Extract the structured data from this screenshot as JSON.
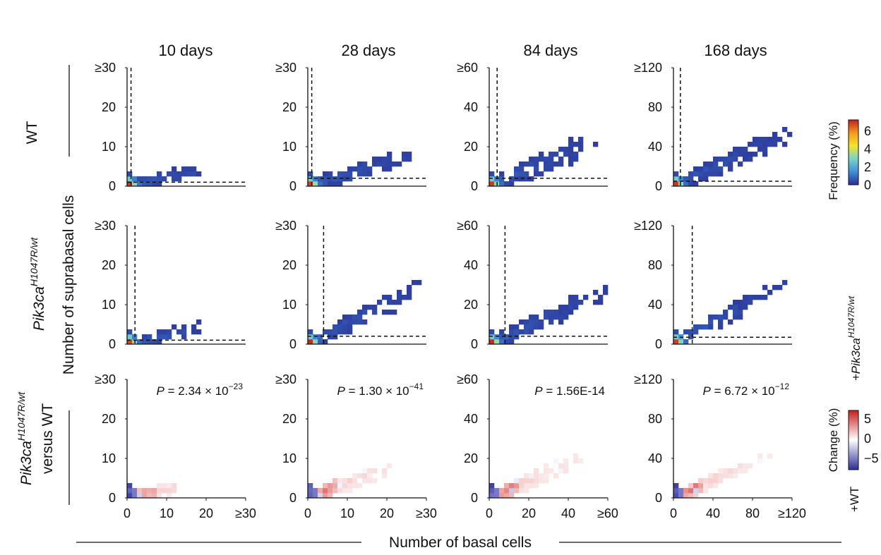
{
  "figure": {
    "x_axis_title": "Number of basal cells",
    "y_axis_title": "Number of suprabasal cells",
    "row_labels": [
      {
        "base": "WT",
        "sup": "",
        "suffix": "",
        "color": "#9a8b1e"
      },
      {
        "base": "Pik3ca",
        "sup": "H1047R/wt",
        "suffix": "",
        "color": "#1f8a4a"
      },
      {
        "base": "Pik3ca",
        "sup": "H1047R/wt",
        "suffix": "versus WT",
        "color": "#111111"
      }
    ],
    "colorbars": {
      "frequency": {
        "title": "Frequency (%)",
        "ticks": [
          "6",
          "4",
          "2",
          "0"
        ],
        "colors": [
          "#2b2f96",
          "#3f8fd8",
          "#78d4c8",
          "#f2e62a",
          "#f39a1c",
          "#c81e1e"
        ]
      },
      "change": {
        "title": "Change (%)",
        "ticks": [
          "5",
          "0",
          "−5"
        ],
        "label_top_base": "+Pik3ca",
        "label_top_sup": "H1047R/wt",
        "label_bottom": "+WT",
        "colors": [
          "#2b2f96",
          "#ffffff",
          "#c81e1e"
        ]
      }
    }
  },
  "chart_data": [
    {
      "type": "heatmap",
      "panel": "WT, 10 days",
      "title": "10 days",
      "xticks": [
        "0",
        "10",
        "20",
        "≥30"
      ],
      "yticks": [
        "0",
        "10",
        "20",
        "≥30"
      ],
      "xlim": [
        0,
        30
      ],
      "ylim": [
        0,
        30
      ],
      "threshold": {
        "x": 1,
        "y": 1
      },
      "trend": [
        0.6,
        0.22,
        0.04
      ]
    },
    {
      "type": "heatmap",
      "panel": "WT, 28 days",
      "title": "28 days",
      "xticks": [
        "0",
        "10",
        "20",
        "≥30"
      ],
      "yticks": [
        "0",
        "10",
        "20",
        "≥30"
      ],
      "xlim": [
        0,
        30
      ],
      "ylim": [
        0,
        30
      ],
      "threshold": {
        "x": 1,
        "y": 2
      },
      "trend": [
        0.85,
        0.3,
        0.07
      ]
    },
    {
      "type": "heatmap",
      "panel": "WT, 84 days",
      "title": "84 days",
      "xticks": [
        "0",
        "20",
        "40",
        "≥60"
      ],
      "yticks": [
        "0",
        "20",
        "40",
        "≥60"
      ],
      "xlim": [
        0,
        60
      ],
      "ylim": [
        0,
        60
      ],
      "threshold": {
        "x": 4,
        "y": 4
      },
      "trend": [
        0.9,
        0.42,
        0.1
      ]
    },
    {
      "type": "heatmap",
      "panel": "WT, 168 days",
      "title": "168 days",
      "xticks": [
        "0",
        "40",
        "80",
        "≥120"
      ],
      "yticks": [
        "0",
        "40",
        "80",
        "≥120"
      ],
      "xlim": [
        0,
        120
      ],
      "ylim": [
        0,
        120
      ],
      "threshold": {
        "x": 7,
        "y": 5
      },
      "trend": [
        1.0,
        0.45,
        0.08
      ]
    },
    {
      "type": "heatmap",
      "panel": "Pik3ca H1047R/wt, 10 days",
      "xticks": [
        "0",
        "10",
        "20",
        "≥30"
      ],
      "yticks": [
        "0",
        "10",
        "20",
        "≥30"
      ],
      "xlim": [
        0,
        30
      ],
      "ylim": [
        0,
        30
      ],
      "threshold": {
        "x": 2,
        "y": 1
      },
      "trend": [
        0.62,
        0.22,
        0.05
      ]
    },
    {
      "type": "heatmap",
      "panel": "Pik3ca H1047R/wt, 28 days",
      "xticks": [
        "0",
        "10",
        "20",
        "≥30"
      ],
      "yticks": [
        "0",
        "10",
        "20",
        "≥30"
      ],
      "xlim": [
        0,
        30
      ],
      "ylim": [
        0,
        30
      ],
      "threshold": {
        "x": 4,
        "y": 2
      },
      "trend": [
        0.95,
        0.5,
        0.08
      ]
    },
    {
      "type": "heatmap",
      "panel": "Pik3ca H1047R/wt, 84 days",
      "xticks": [
        "0",
        "20",
        "40",
        "≥60"
      ],
      "yticks": [
        "0",
        "20",
        "40",
        "≥60"
      ],
      "xlim": [
        0,
        60
      ],
      "ylim": [
        0,
        60
      ],
      "threshold": {
        "x": 8,
        "y": 4
      },
      "trend": [
        1.0,
        0.45,
        0.09
      ]
    },
    {
      "type": "heatmap",
      "panel": "Pik3ca H1047R/wt, 168 days",
      "xticks": [
        "0",
        "40",
        "80",
        "≥120"
      ],
      "yticks": [
        "0",
        "40",
        "80",
        "≥120"
      ],
      "xlim": [
        0,
        120
      ],
      "ylim": [
        0,
        120
      ],
      "threshold": {
        "x": 19,
        "y": 7
      },
      "trend": [
        1.0,
        0.55,
        0.08
      ]
    },
    {
      "type": "heatmap",
      "panel": "Change, 10 days",
      "diff": true,
      "pvalue": {
        "prefix": "P",
        "eq": " = 2.34 × 10",
        "exp": "−23"
      },
      "xticks": [
        "0",
        "10",
        "20",
        "≥30"
      ],
      "yticks": [
        "0",
        "10",
        "20",
        "≥30"
      ],
      "xlim": [
        0,
        30
      ],
      "ylim": [
        0,
        30
      ],
      "trend": [
        0.4,
        0.2,
        0.04
      ]
    },
    {
      "type": "heatmap",
      "panel": "Change, 28 days",
      "diff": true,
      "pvalue": {
        "prefix": "P",
        "eq": " = 1.30 × 10",
        "exp": "−41"
      },
      "xticks": [
        "0",
        "10",
        "20",
        "≥30"
      ],
      "yticks": [
        "0",
        "10",
        "20",
        "≥30"
      ],
      "xlim": [
        0,
        30
      ],
      "ylim": [
        0,
        30
      ],
      "trend": [
        0.7,
        0.38,
        0.06
      ]
    },
    {
      "type": "heatmap",
      "panel": "Change, 84 days",
      "diff": true,
      "pvalue": {
        "prefix": "P",
        "eq": " = 1.56E-14",
        "exp": ""
      },
      "xticks": [
        "0",
        "20",
        "40",
        "≥60"
      ],
      "yticks": [
        "0",
        "20",
        "40",
        "≥60"
      ],
      "xlim": [
        0,
        60
      ],
      "ylim": [
        0,
        60
      ],
      "trend": [
        1.0,
        0.42,
        0.08
      ]
    },
    {
      "type": "heatmap",
      "panel": "Change, 168 days",
      "diff": true,
      "pvalue": {
        "prefix": "P",
        "eq": " = 6.72 × 10",
        "exp": "−12"
      },
      "xticks": [
        "0",
        "40",
        "80",
        "≥120"
      ],
      "yticks": [
        "0",
        "40",
        "80",
        "≥120"
      ],
      "xlim": [
        0,
        120
      ],
      "ylim": [
        0,
        120
      ],
      "trend": [
        1.0,
        0.45,
        0.06
      ]
    }
  ]
}
